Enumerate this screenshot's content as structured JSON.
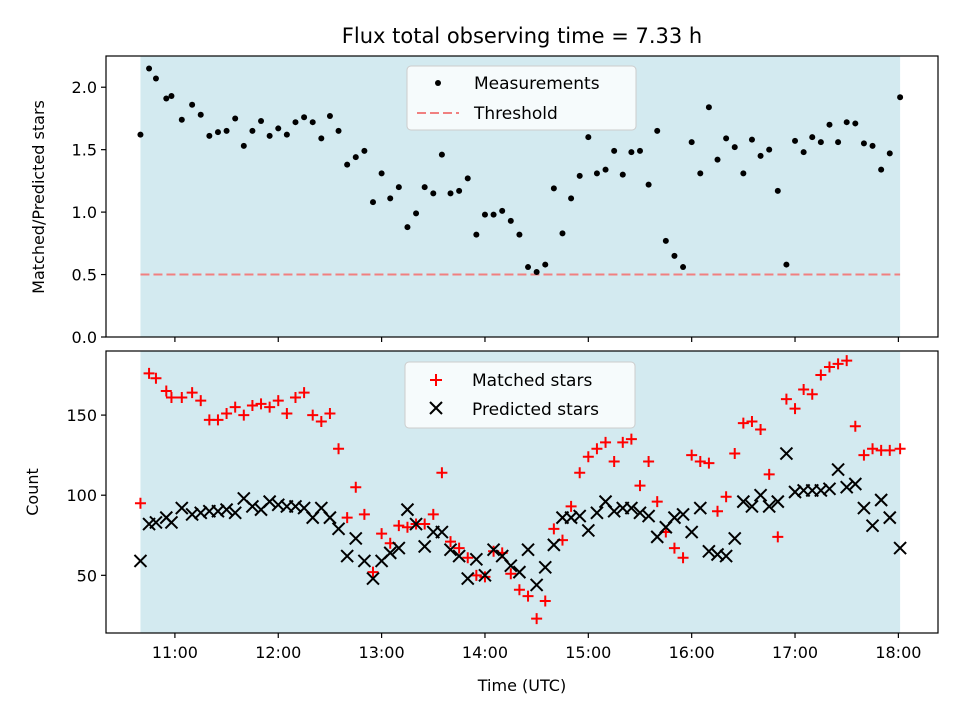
{
  "chart_data": [
    {
      "type": "scatter",
      "title": "Flux total observing time = 7.33 h",
      "xlabel": "",
      "ylabel": "Matched/Predicted stars",
      "xlim": [
        "10:20",
        "18:23"
      ],
      "ylim": [
        0,
        2.25
      ],
      "yticks": [
        0.0,
        0.5,
        1.0,
        1.5,
        2.0
      ],
      "ytick_labels": [
        "0.0",
        "0.5",
        "1.0",
        "1.5",
        "2.0"
      ],
      "shaded_span": {
        "start": "10:40",
        "end": "18:01",
        "color": "#d3eaf0"
      },
      "legend": {
        "placement": "top-center"
      },
      "series": [
        {
          "name": "Measurements",
          "marker": "dot",
          "color": "#000000",
          "x": [
            "10:40",
            "10:45",
            "10:49",
            "10:55",
            "10:58",
            "11:04",
            "11:10",
            "11:15",
            "11:20",
            "11:25",
            "11:30",
            "11:35",
            "11:40",
            "11:45",
            "11:50",
            "11:55",
            "12:00",
            "12:05",
            "12:10",
            "12:15",
            "12:20",
            "12:25",
            "12:30",
            "12:35",
            "12:40",
            "12:45",
            "12:50",
            "12:55",
            "13:00",
            "13:05",
            "13:10",
            "13:15",
            "13:20",
            "13:25",
            "13:30",
            "13:35",
            "13:40",
            "13:45",
            "13:50",
            "13:55",
            "14:00",
            "14:05",
            "14:10",
            "14:15",
            "14:20",
            "14:25",
            "14:30",
            "14:35",
            "14:40",
            "14:45",
            "14:50",
            "14:55",
            "15:00",
            "15:05",
            "15:10",
            "15:15",
            "15:20",
            "15:25",
            "15:30",
            "15:35",
            "15:40",
            "15:45",
            "15:50",
            "15:55",
            "16:00",
            "16:05",
            "16:10",
            "16:15",
            "16:20",
            "16:25",
            "16:30",
            "16:35",
            "16:40",
            "16:45",
            "16:50",
            "16:55",
            "17:00",
            "17:05",
            "17:10",
            "17:15",
            "17:20",
            "17:25",
            "17:30",
            "17:35",
            "17:40",
            "17:45",
            "17:50",
            "17:55",
            "18:01"
          ],
          "y": [
            1.62,
            2.15,
            2.07,
            1.91,
            1.93,
            1.74,
            1.86,
            1.78,
            1.61,
            1.64,
            1.65,
            1.75,
            1.53,
            1.65,
            1.73,
            1.61,
            1.67,
            1.62,
            1.72,
            1.76,
            1.72,
            1.59,
            1.77,
            1.65,
            1.38,
            1.44,
            1.49,
            1.08,
            1.31,
            1.11,
            1.2,
            0.88,
            0.99,
            1.2,
            1.15,
            1.46,
            1.15,
            1.17,
            1.27,
            0.82,
            0.98,
            0.98,
            1.01,
            0.93,
            0.82,
            0.56,
            0.52,
            0.58,
            1.19,
            0.83,
            1.11,
            1.29,
            1.6,
            1.31,
            1.34,
            1.49,
            1.3,
            1.48,
            1.49,
            1.22,
            1.65,
            0.77,
            0.65,
            0.56,
            1.56,
            1.31,
            1.84,
            1.42,
            1.59,
            1.52,
            1.31,
            1.58,
            1.45,
            1.5,
            1.17,
            0.58,
            1.57,
            1.48,
            1.6,
            1.56,
            1.7,
            1.56,
            1.72,
            1.71,
            1.55,
            1.53,
            1.34,
            1.47,
            1.92
          ]
        },
        {
          "name": "Threshold",
          "line_style": "dashed",
          "color": "#f08080",
          "x": [
            "10:40",
            "18:01"
          ],
          "y": [
            0.5,
            0.5
          ]
        }
      ]
    },
    {
      "type": "scatter",
      "title": "",
      "xlabel": "Time (UTC)",
      "ylabel": "Count",
      "xlim": [
        "10:20",
        "18:23"
      ],
      "xticks": [
        "11:00",
        "12:00",
        "13:00",
        "14:00",
        "15:00",
        "16:00",
        "17:00",
        "18:00"
      ],
      "ylim": [
        14,
        190
      ],
      "yticks": [
        50,
        100,
        150
      ],
      "ytick_labels": [
        "50",
        "100",
        "150"
      ],
      "shaded_span": {
        "start": "10:40",
        "end": "18:01",
        "color": "#d3eaf0"
      },
      "legend": {
        "placement": "top-center"
      },
      "series": [
        {
          "name": "Matched stars",
          "marker": "plus",
          "color": "#ff0000",
          "x": [
            "10:40",
            "10:45",
            "10:49",
            "10:55",
            "10:58",
            "11:04",
            "11:10",
            "11:15",
            "11:20",
            "11:25",
            "11:30",
            "11:35",
            "11:40",
            "11:45",
            "11:50",
            "11:55",
            "12:00",
            "12:05",
            "12:10",
            "12:15",
            "12:20",
            "12:25",
            "12:30",
            "12:35",
            "12:40",
            "12:45",
            "12:50",
            "12:55",
            "13:00",
            "13:05",
            "13:10",
            "13:15",
            "13:20",
            "13:25",
            "13:30",
            "13:35",
            "13:40",
            "13:45",
            "13:50",
            "13:55",
            "14:00",
            "14:05",
            "14:10",
            "14:15",
            "14:20",
            "14:25",
            "14:30",
            "14:35",
            "14:40",
            "14:45",
            "14:50",
            "14:55",
            "15:00",
            "15:05",
            "15:10",
            "15:15",
            "15:20",
            "15:25",
            "15:30",
            "15:35",
            "15:40",
            "15:45",
            "15:50",
            "15:55",
            "16:00",
            "16:05",
            "16:10",
            "16:15",
            "16:20",
            "16:25",
            "16:30",
            "16:35",
            "16:40",
            "16:45",
            "16:50",
            "16:55",
            "17:00",
            "17:05",
            "17:10",
            "17:15",
            "17:20",
            "17:25",
            "17:30",
            "17:35",
            "17:40",
            "17:45",
            "17:50",
            "17:55",
            "18:01"
          ],
          "y": [
            95,
            176,
            173,
            165,
            161,
            161,
            164,
            159,
            147,
            147,
            151,
            155,
            150,
            156,
            157,
            155,
            159,
            151,
            161,
            164,
            150,
            146,
            151,
            129,
            86,
            105,
            88,
            52,
            76,
            70,
            81,
            80,
            82,
            82,
            88,
            114,
            71,
            67,
            61,
            50,
            49,
            65,
            64,
            51,
            41,
            37,
            23,
            34,
            79,
            72,
            93,
            114,
            124,
            129,
            133,
            121,
            133,
            135,
            106,
            121,
            96,
            77,
            67,
            61,
            125,
            121,
            120,
            90,
            99,
            126,
            145,
            146,
            141,
            113,
            74,
            160,
            154,
            166,
            163,
            175,
            180,
            182,
            184,
            143,
            125,
            129,
            128,
            128,
            129
          ]
        },
        {
          "name": "Predicted stars",
          "marker": "x",
          "color": "#000000",
          "x": [
            "10:40",
            "10:45",
            "10:49",
            "10:55",
            "10:58",
            "11:04",
            "11:10",
            "11:15",
            "11:20",
            "11:25",
            "11:30",
            "11:35",
            "11:40",
            "11:45",
            "11:50",
            "11:55",
            "12:00",
            "12:05",
            "12:10",
            "12:15",
            "12:20",
            "12:25",
            "12:30",
            "12:35",
            "12:40",
            "12:45",
            "12:50",
            "12:55",
            "13:00",
            "13:05",
            "13:10",
            "13:15",
            "13:20",
            "13:25",
            "13:30",
            "13:35",
            "13:40",
            "13:45",
            "13:50",
            "13:55",
            "14:00",
            "14:05",
            "14:10",
            "14:15",
            "14:20",
            "14:25",
            "14:30",
            "14:35",
            "14:40",
            "14:45",
            "14:50",
            "14:55",
            "15:00",
            "15:05",
            "15:10",
            "15:15",
            "15:20",
            "15:25",
            "15:30",
            "15:35",
            "15:40",
            "15:45",
            "15:50",
            "15:55",
            "16:00",
            "16:05",
            "16:10",
            "16:15",
            "16:20",
            "16:25",
            "16:30",
            "16:35",
            "16:40",
            "16:45",
            "16:50",
            "16:55",
            "17:00",
            "17:05",
            "17:10",
            "17:15",
            "17:20",
            "17:25",
            "17:30",
            "17:35",
            "17:40",
            "17:45",
            "17:50",
            "17:55",
            "18:01"
          ],
          "y": [
            59,
            82,
            83,
            86,
            83,
            92,
            88,
            89,
            90,
            90,
            91,
            89,
            98,
            93,
            91,
            96,
            94,
            93,
            93,
            92,
            86,
            92,
            86,
            79,
            62,
            73,
            59,
            48,
            59,
            64,
            67,
            91,
            82,
            68,
            77,
            77,
            66,
            62,
            48,
            60,
            50,
            66,
            62,
            56,
            52,
            66,
            44,
            55,
            69,
            86,
            86,
            87,
            78,
            89,
            96,
            90,
            92,
            92,
            89,
            87,
            74,
            80,
            86,
            88,
            77,
            92,
            65,
            63,
            62,
            73,
            96,
            93,
            100,
            93,
            96,
            126,
            102,
            103,
            103,
            103,
            104,
            116,
            105,
            107,
            92,
            81,
            97,
            86,
            67
          ]
        }
      ]
    }
  ]
}
